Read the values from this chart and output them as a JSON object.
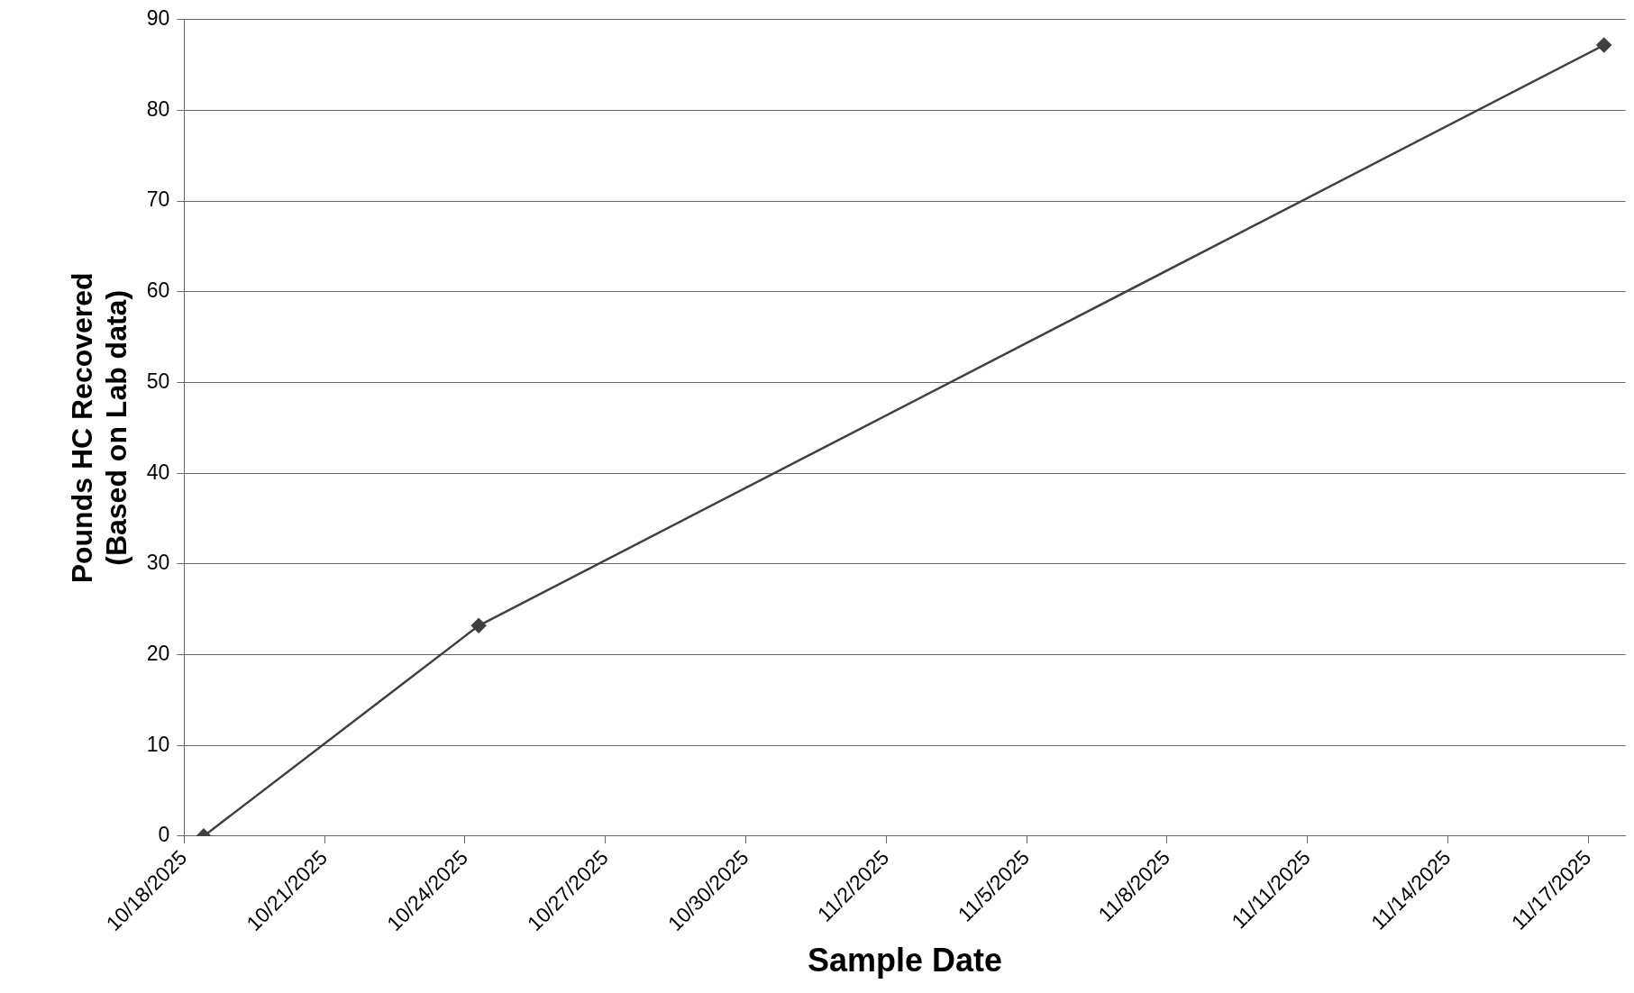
{
  "chart_data": {
    "type": "line",
    "xlabel": "Sample Date",
    "ylabel": "Pounds HC Recovered\n(Based on Lab data)",
    "x": [
      "2025-10-18T10:00",
      "2025-10-24T07:00",
      "2025-11-17T08:00"
    ],
    "series": [
      {
        "color": "#404040",
        "values": [
          0,
          23.2,
          87.2
        ]
      }
    ],
    "xlim": [
      "2025-10-18",
      "2025-11-17T19:00"
    ],
    "xticks": [
      {
        "value": "2025-10-18",
        "label": "10/18/2025"
      },
      {
        "value": "2025-10-21",
        "label": "10/21/2025"
      },
      {
        "value": "2025-10-24",
        "label": "10/24/2025"
      },
      {
        "value": "2025-10-27",
        "label": "10/27/2025"
      },
      {
        "value": "2025-10-30",
        "label": "10/30/2025"
      },
      {
        "value": "2025-11-02",
        "label": "11/2/2025"
      },
      {
        "value": "2025-11-05",
        "label": "11/5/2025"
      },
      {
        "value": "2025-11-08",
        "label": "11/8/2025"
      },
      {
        "value": "2025-11-11",
        "label": "11/11/2025"
      },
      {
        "value": "2025-11-14",
        "label": "11/14/2025"
      },
      {
        "value": "2025-11-17",
        "label": "11/17/2025"
      }
    ],
    "ylim": [
      0,
      90
    ],
    "yticks": [
      0,
      10,
      20,
      30,
      40,
      50,
      60,
      70,
      80,
      90
    ],
    "grid": "y",
    "legend": false,
    "marker": "diamond",
    "line_style": "solid"
  }
}
